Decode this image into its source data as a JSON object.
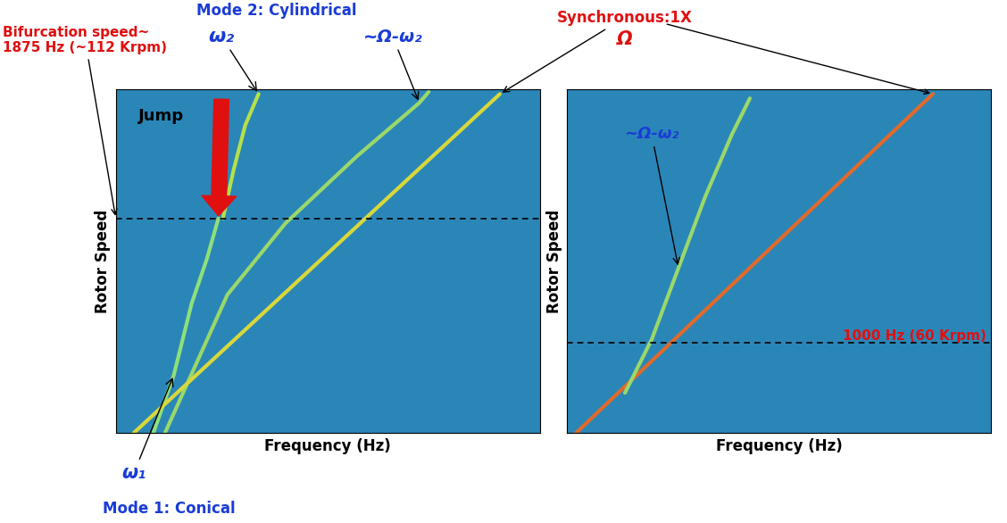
{
  "chart_data": [
    {
      "type": "line",
      "x_label": "Frequency (Hz)",
      "y_label": "Rotor Speed",
      "xlim": [
        0,
        3400
      ],
      "ylim": [
        0,
        3000
      ],
      "tick_labels": false,
      "reference_line": 1875,
      "series": [
        {
          "x": [
            301,
            465,
            608,
            730,
            823
          ],
          "values": [
            0,
            506,
            1130,
            1519,
            1875
          ],
          "color": "#8ee07a"
        },
        {
          "x": [
            859,
            945,
            1038,
            1145
          ],
          "values": [
            1875,
            2299,
            2688,
            2961
          ],
          "color": "#b5e04a"
        },
        {
          "x": [
            394,
            895,
            1360,
            1933,
            2434,
            2510
          ],
          "values": [
            0,
            1208,
            1831,
            2416,
            2883,
            2980
          ],
          "color": "#9ad86a"
        },
        {
          "x": [
            143,
            3080
          ],
          "values": [
            0,
            2960
          ],
          "color": "#d8d83a"
        }
      ],
      "annotations": [
        {
          "text": "Mode 2: Cylindrical",
          "color": "#1a3cd6"
        },
        {
          "text": "ω₂",
          "color": "#1a3cd6"
        },
        {
          "text": "Bifurcation speed~\n1875 Hz (~112 Krpm)",
          "color": "#e01010"
        },
        {
          "text": "~Ω-ω₂",
          "color": "#1a3cd6"
        },
        {
          "text": "Synchronous:1X",
          "color": "#e01010"
        },
        {
          "text": "Ω",
          "color": "#e01010"
        },
        {
          "text": "Jump",
          "color": "#000000"
        },
        {
          "text": "ω₁",
          "color": "#1a3cd6"
        },
        {
          "text": "Mode 1: Conical",
          "color": "#1a3cd6"
        }
      ]
    },
    {
      "type": "line",
      "x_label": "Frequency (Hz)",
      "y_label": "Rotor Speed",
      "xlim": [
        0,
        4450
      ],
      "ylim": [
        0,
        3800
      ],
      "tick_labels": false,
      "reference_line": 1000,
      "series": [
        {
          "x": [
            94,
            3841
          ],
          "values": [
            0,
            3750
          ],
          "color": "#e06a2a"
        },
        {
          "x": [
            609,
            890,
            1171,
            1452,
            1733,
            1920
          ],
          "values": [
            444,
            1036,
            1826,
            2616,
            3306,
            3701
          ],
          "color": "#9ad86a"
        }
      ],
      "annotations": [
        {
          "text": "~Ω-ω₂",
          "color": "#1a3cd6"
        },
        {
          "text": "1000 Hz (60 Krpm)",
          "color": "#e01010"
        }
      ]
    }
  ]
}
